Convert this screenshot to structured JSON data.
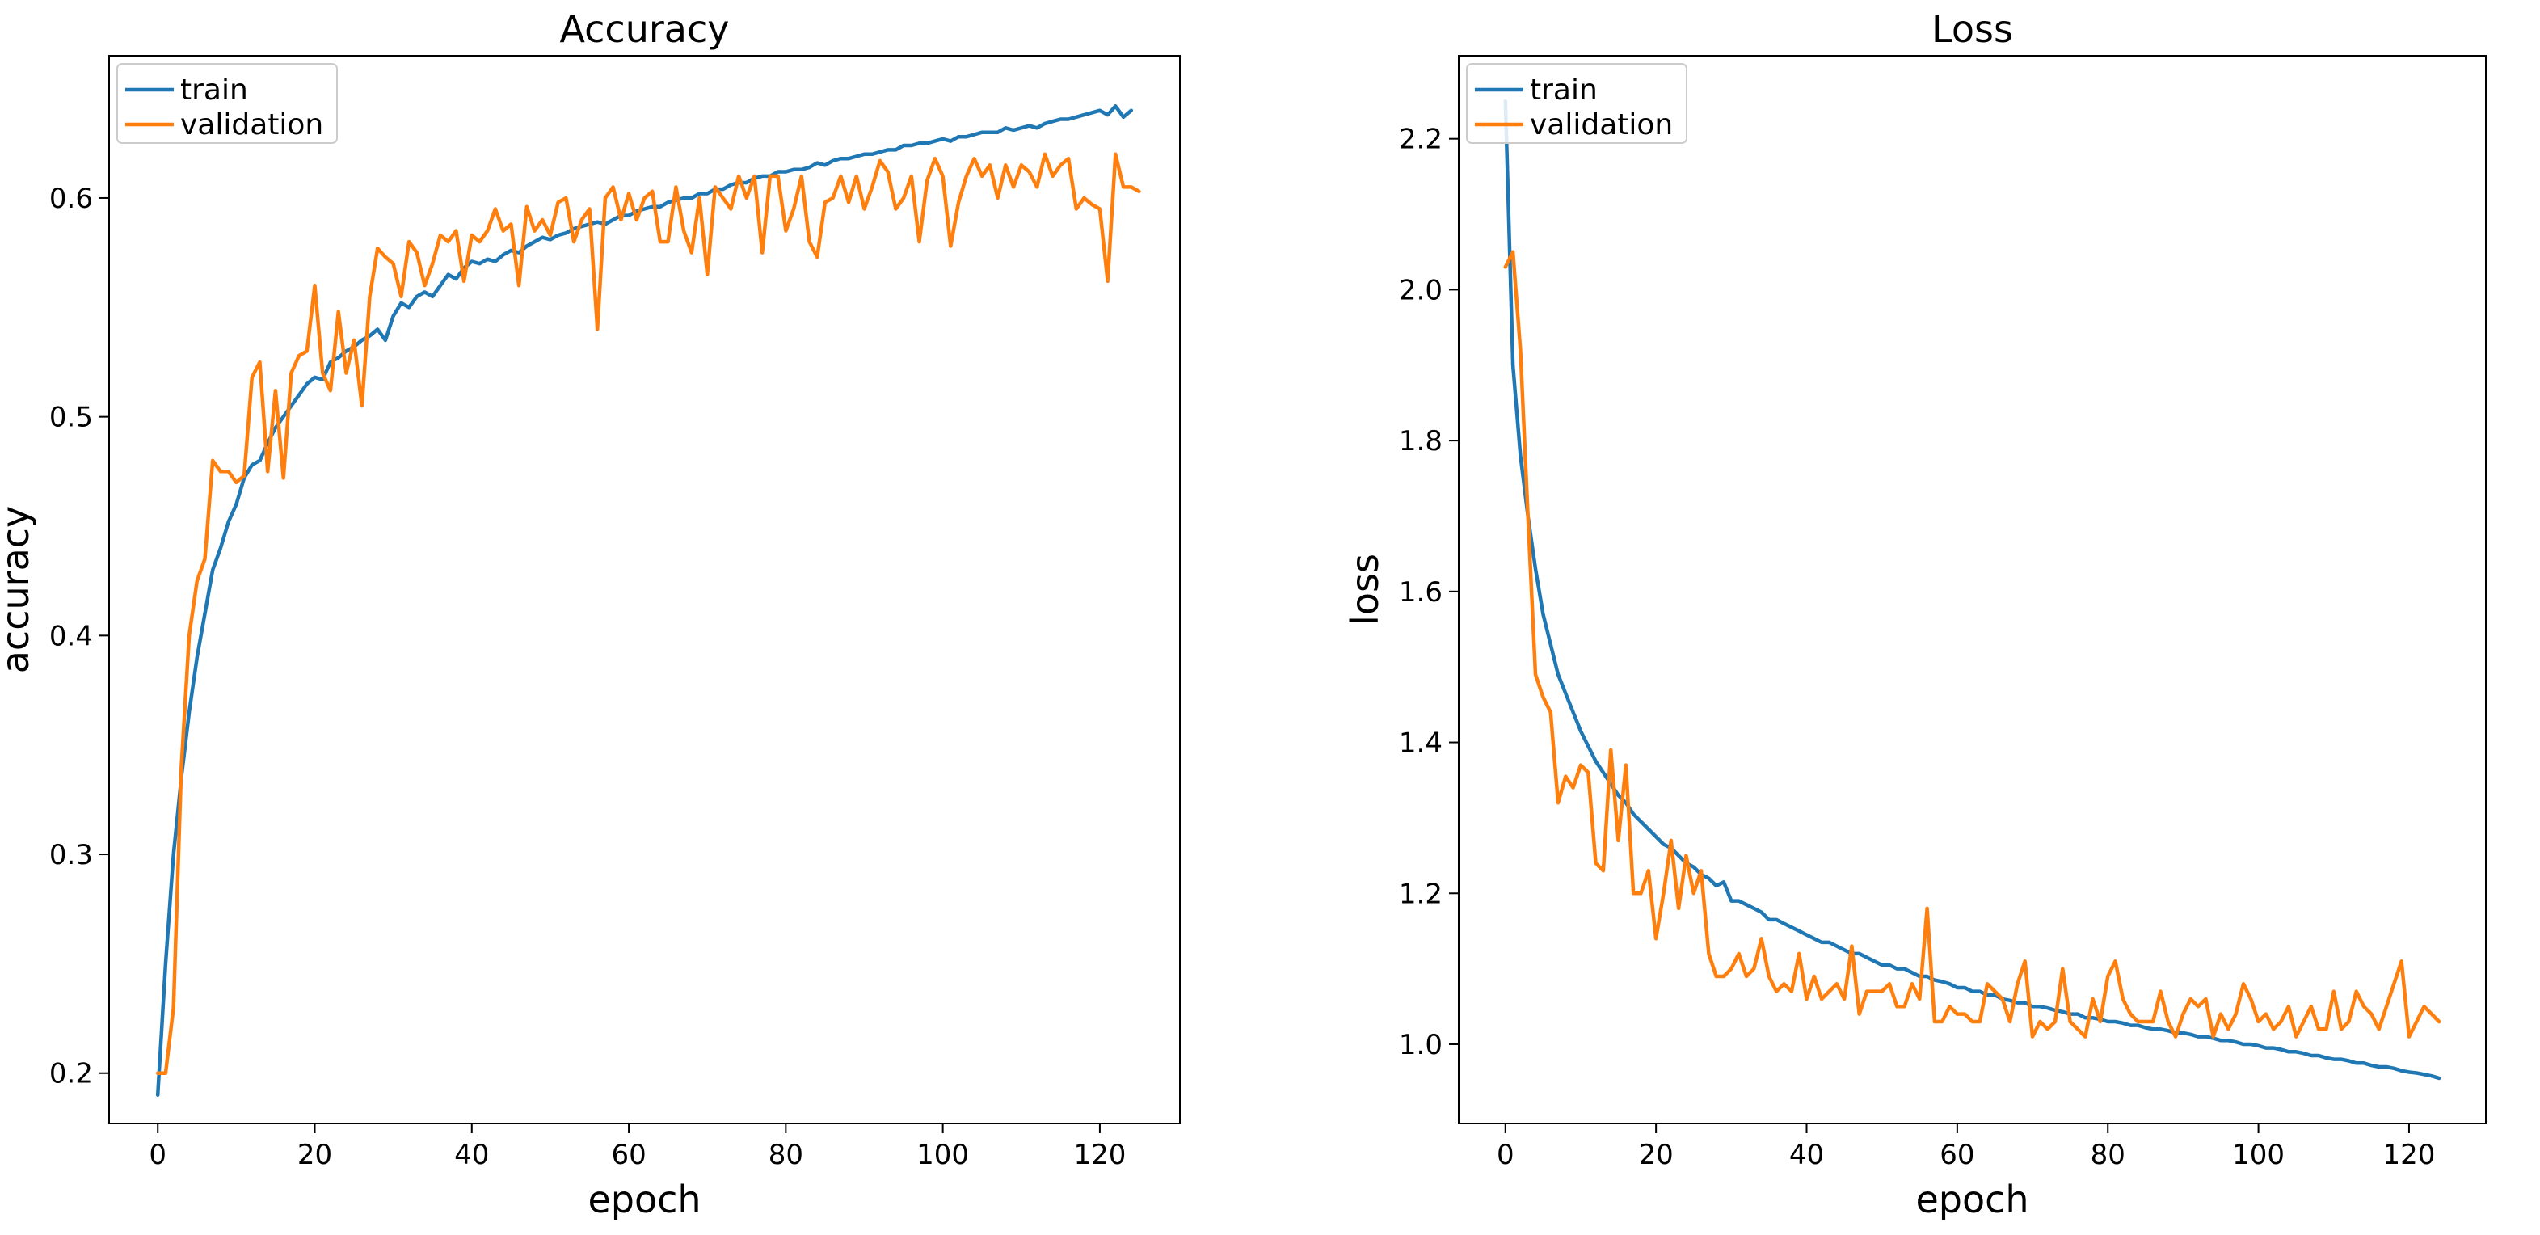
{
  "chart_data": [
    {
      "type": "line",
      "title": "Accuracy",
      "xlabel": "epoch",
      "ylabel": "accuracy",
      "xlim": [
        -6.2,
        130.2
      ],
      "ylim": [
        0.177,
        0.665
      ],
      "xticks": [
        0,
        20,
        40,
        60,
        80,
        100,
        120
      ],
      "yticks": [
        0.2,
        0.3,
        0.4,
        0.5,
        0.6
      ],
      "ytick_labels": [
        "0.2",
        "0.3",
        "0.4",
        "0.5",
        "0.6"
      ],
      "grid": false,
      "legend_position": "top-left",
      "series": [
        {
          "name": "train",
          "color": "#1f77b4",
          "x_start": 0,
          "values": [
            0.19,
            0.25,
            0.3,
            0.335,
            0.365,
            0.39,
            0.41,
            0.43,
            0.44,
            0.452,
            0.46,
            0.472,
            0.478,
            0.48,
            0.488,
            0.495,
            0.5,
            0.505,
            0.51,
            0.515,
            0.518,
            0.517,
            0.525,
            0.527,
            0.53,
            0.532,
            0.535,
            0.537,
            0.54,
            0.535,
            0.546,
            0.552,
            0.55,
            0.555,
            0.557,
            0.555,
            0.56,
            0.565,
            0.563,
            0.568,
            0.571,
            0.57,
            0.572,
            0.571,
            0.574,
            0.576,
            0.575,
            0.578,
            0.58,
            0.582,
            0.581,
            0.583,
            0.584,
            0.586,
            0.587,
            0.588,
            0.589,
            0.588,
            0.59,
            0.592,
            0.592,
            0.594,
            0.595,
            0.596,
            0.596,
            0.598,
            0.599,
            0.6,
            0.6,
            0.602,
            0.602,
            0.604,
            0.604,
            0.606,
            0.607,
            0.607,
            0.609,
            0.61,
            0.61,
            0.612,
            0.612,
            0.613,
            0.613,
            0.614,
            0.616,
            0.615,
            0.617,
            0.618,
            0.618,
            0.619,
            0.62,
            0.62,
            0.621,
            0.622,
            0.622,
            0.624,
            0.624,
            0.625,
            0.625,
            0.626,
            0.627,
            0.626,
            0.628,
            0.628,
            0.629,
            0.63,
            0.63,
            0.63,
            0.632,
            0.631,
            0.632,
            0.633,
            0.632,
            0.634,
            0.635,
            0.636,
            0.636,
            0.637,
            0.638,
            0.639,
            0.64,
            0.638,
            0.642,
            0.637,
            0.64
          ]
        },
        {
          "name": "validation",
          "color": "#ff7f0e",
          "x_start": 0,
          "values": [
            0.2,
            0.2,
            0.23,
            0.34,
            0.4,
            0.425,
            0.435,
            0.48,
            0.475,
            0.475,
            0.47,
            0.473,
            0.518,
            0.525,
            0.475,
            0.512,
            0.472,
            0.52,
            0.528,
            0.53,
            0.56,
            0.52,
            0.512,
            0.548,
            0.52,
            0.535,
            0.505,
            0.555,
            0.577,
            0.573,
            0.57,
            0.555,
            0.58,
            0.575,
            0.56,
            0.57,
            0.583,
            0.58,
            0.585,
            0.562,
            0.583,
            0.58,
            0.585,
            0.595,
            0.585,
            0.588,
            0.56,
            0.596,
            0.585,
            0.59,
            0.583,
            0.598,
            0.6,
            0.58,
            0.59,
            0.595,
            0.54,
            0.6,
            0.605,
            0.59,
            0.602,
            0.59,
            0.6,
            0.603,
            0.58,
            0.58,
            0.605,
            0.585,
            0.575,
            0.6,
            0.565,
            0.605,
            0.6,
            0.595,
            0.61,
            0.6,
            0.61,
            0.575,
            0.61,
            0.61,
            0.585,
            0.595,
            0.61,
            0.58,
            0.573,
            0.598,
            0.6,
            0.61,
            0.598,
            0.61,
            0.595,
            0.605,
            0.617,
            0.612,
            0.595,
            0.6,
            0.61,
            0.58,
            0.608,
            0.618,
            0.61,
            0.578,
            0.598,
            0.61,
            0.618,
            0.61,
            0.615,
            0.6,
            0.615,
            0.605,
            0.615,
            0.612,
            0.605,
            0.62,
            0.61,
            0.615,
            0.618,
            0.595,
            0.6,
            0.597,
            0.595,
            0.562,
            0.62,
            0.605,
            0.605,
            0.603
          ]
        }
      ]
    },
    {
      "type": "line",
      "title": "Loss",
      "xlabel": "epoch",
      "ylabel": "loss",
      "xlim": [
        -6.2,
        130.2
      ],
      "ylim": [
        0.895,
        2.31
      ],
      "xticks": [
        0,
        20,
        40,
        60,
        80,
        100,
        120
      ],
      "yticks": [
        1.0,
        1.2,
        1.4,
        1.6,
        1.8,
        2.0,
        2.2
      ],
      "ytick_labels": [
        "1.0",
        "1.2",
        "1.4",
        "1.6",
        "1.8",
        "2.0",
        "2.2"
      ],
      "grid": false,
      "legend_position": "top-left",
      "series": [
        {
          "name": "train",
          "color": "#1f77b4",
          "x_start": 0,
          "values": [
            2.25,
            1.9,
            1.78,
            1.7,
            1.63,
            1.57,
            1.53,
            1.49,
            1.465,
            1.44,
            1.415,
            1.395,
            1.375,
            1.36,
            1.345,
            1.33,
            1.32,
            1.305,
            1.295,
            1.285,
            1.275,
            1.265,
            1.26,
            1.25,
            1.24,
            1.235,
            1.225,
            1.22,
            1.21,
            1.215,
            1.19,
            1.19,
            1.185,
            1.18,
            1.175,
            1.165,
            1.165,
            1.16,
            1.155,
            1.15,
            1.145,
            1.14,
            1.135,
            1.135,
            1.13,
            1.125,
            1.12,
            1.12,
            1.115,
            1.11,
            1.105,
            1.105,
            1.1,
            1.1,
            1.095,
            1.09,
            1.09,
            1.085,
            1.083,
            1.08,
            1.075,
            1.075,
            1.07,
            1.07,
            1.065,
            1.065,
            1.06,
            1.058,
            1.055,
            1.055,
            1.05,
            1.05,
            1.048,
            1.045,
            1.043,
            1.04,
            1.04,
            1.035,
            1.035,
            1.033,
            1.03,
            1.03,
            1.028,
            1.025,
            1.025,
            1.022,
            1.02,
            1.02,
            1.018,
            1.015,
            1.015,
            1.013,
            1.01,
            1.01,
            1.008,
            1.005,
            1.005,
            1.003,
            1.0,
            1.0,
            0.998,
            0.995,
            0.995,
            0.993,
            0.99,
            0.99,
            0.988,
            0.985,
            0.985,
            0.982,
            0.98,
            0.98,
            0.978,
            0.975,
            0.975,
            0.972,
            0.97,
            0.97,
            0.968,
            0.965,
            0.963,
            0.962,
            0.96,
            0.958,
            0.955
          ]
        },
        {
          "name": "validation",
          "color": "#ff7f0e",
          "x_start": 0,
          "values": [
            2.03,
            2.05,
            1.92,
            1.7,
            1.49,
            1.46,
            1.44,
            1.32,
            1.355,
            1.34,
            1.37,
            1.36,
            1.24,
            1.23,
            1.39,
            1.27,
            1.37,
            1.2,
            1.2,
            1.23,
            1.14,
            1.2,
            1.27,
            1.18,
            1.25,
            1.2,
            1.23,
            1.12,
            1.09,
            1.09,
            1.1,
            1.12,
            1.09,
            1.1,
            1.14,
            1.09,
            1.07,
            1.08,
            1.07,
            1.12,
            1.06,
            1.09,
            1.06,
            1.07,
            1.08,
            1.06,
            1.13,
            1.04,
            1.07,
            1.07,
            1.07,
            1.08,
            1.05,
            1.05,
            1.08,
            1.06,
            1.18,
            1.03,
            1.03,
            1.05,
            1.04,
            1.04,
            1.03,
            1.03,
            1.08,
            1.07,
            1.06,
            1.03,
            1.08,
            1.11,
            1.01,
            1.03,
            1.02,
            1.03,
            1.1,
            1.03,
            1.02,
            1.01,
            1.06,
            1.03,
            1.09,
            1.11,
            1.06,
            1.04,
            1.03,
            1.03,
            1.03,
            1.07,
            1.03,
            1.01,
            1.04,
            1.06,
            1.05,
            1.06,
            1.01,
            1.04,
            1.02,
            1.04,
            1.08,
            1.06,
            1.03,
            1.04,
            1.02,
            1.03,
            1.05,
            1.01,
            1.03,
            1.05,
            1.02,
            1.02,
            1.07,
            1.02,
            1.03,
            1.07,
            1.05,
            1.04,
            1.02,
            1.05,
            1.08,
            1.11,
            1.01,
            1.03,
            1.05,
            1.04,
            1.03
          ]
        }
      ]
    }
  ]
}
